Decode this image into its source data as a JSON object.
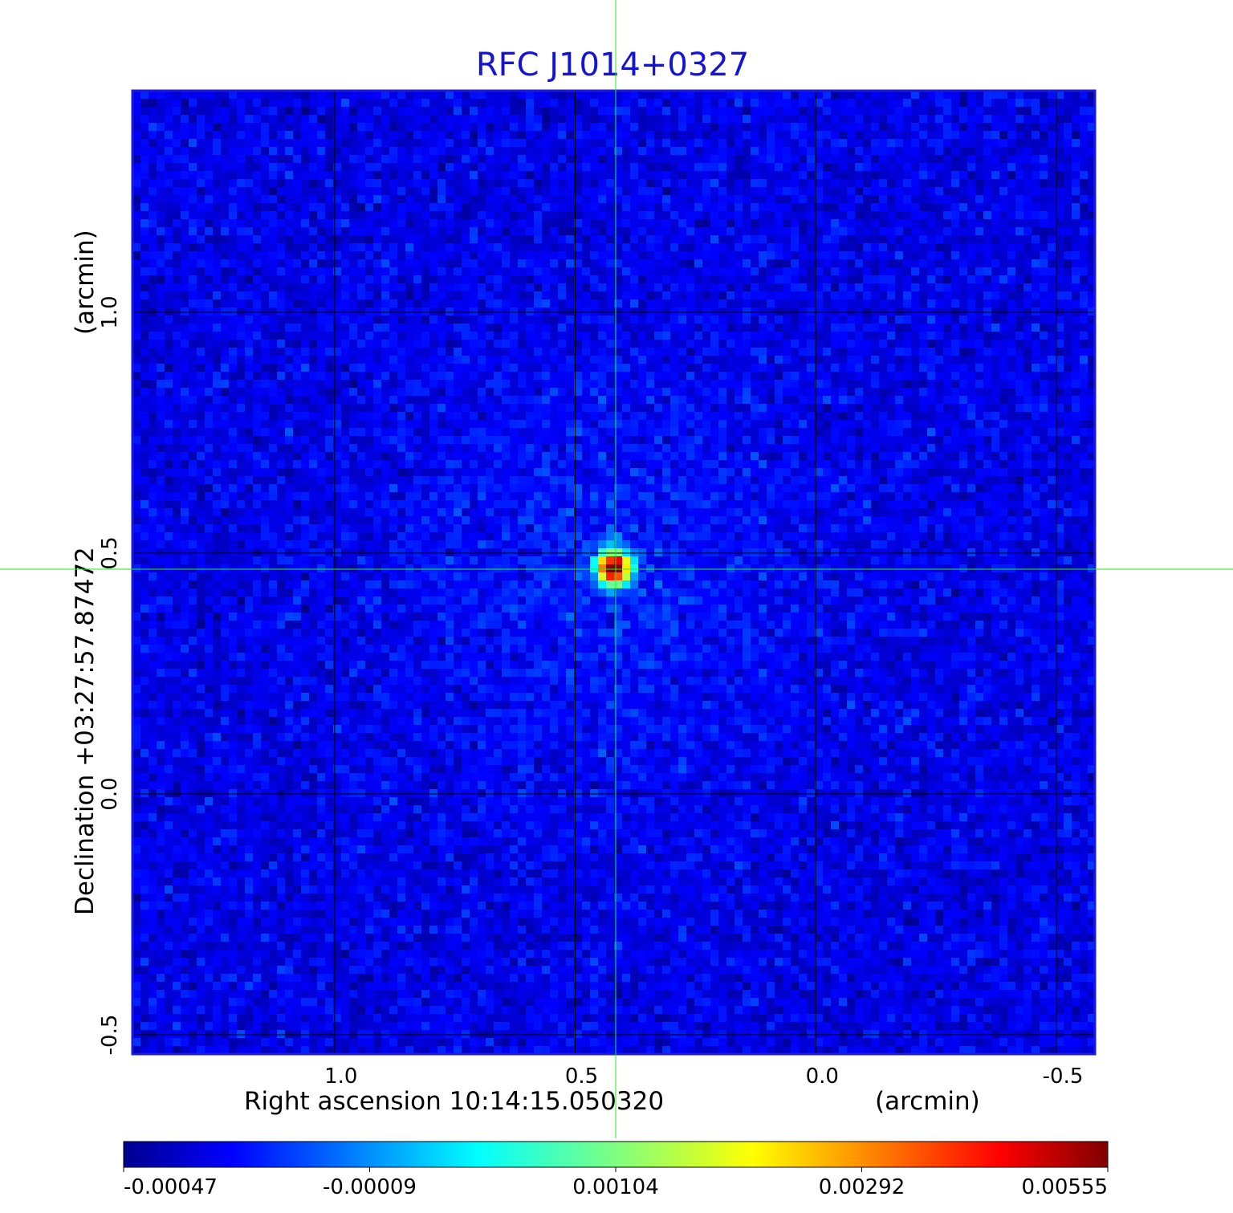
{
  "chart_data": {
    "type": "heatmap",
    "title": "RFC J1014+0327",
    "xlabel": "Right ascension  10:14:15.050320",
    "xunit": "(arcmin)",
    "ylabel": "Declination  +03:27:57.87472",
    "yunit": "(arcmin)",
    "x_ticks": [
      "1.0",
      "0.5",
      "0.0",
      "-0.5"
    ],
    "x_tick_values": [
      1.0,
      0.5,
      0.0,
      -0.5
    ],
    "y_ticks": [
      "1.0",
      "0.5",
      "0.0",
      "-0.5"
    ],
    "y_tick_values": [
      1.0,
      0.5,
      0.0,
      -0.5
    ],
    "xlim": [
      1.42,
      -0.58
    ],
    "ylim": [
      -0.54,
      1.46
    ],
    "grid": true,
    "colormap": "jet",
    "colorbar": {
      "labels": [
        "-0.00047",
        "-0.00009",
        "0.00104",
        "0.00292",
        "0.00555"
      ],
      "values": [
        -0.00047,
        -9e-05,
        0.00104,
        0.00292,
        0.00555
      ],
      "placement": "bottom"
    },
    "source": {
      "x": 0.42,
      "y": 0.47,
      "peak": 0.00555
    },
    "background_level": 0.00015,
    "crosshair_color": "#22ee22"
  }
}
